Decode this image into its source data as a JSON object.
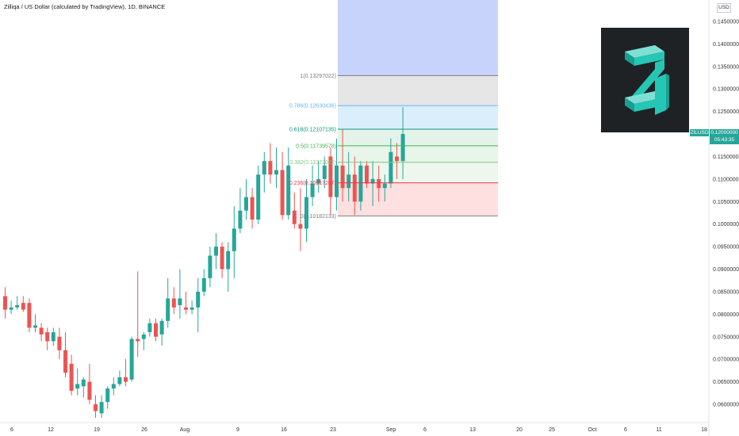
{
  "header": {
    "title": "Zilliqa / US Dollar (calculated by TradingView), 1D, BINANCE"
  },
  "currency_button": "USD",
  "last_price": {
    "symbol": "ZILUSD",
    "price": "0.12000000",
    "countdown": "05:43:35"
  },
  "logo": {
    "name": "zilliqa-logo",
    "colors": [
      "#26c6b5",
      "#1e2225"
    ]
  },
  "colors": {
    "up": "#26a69a",
    "down": "#ef5350",
    "fib_zone_blue": "#c7d3fb"
  },
  "chart_data": {
    "type": "candlestick",
    "y_ticks": [
      "0.14500000",
      "0.14000000",
      "0.13500000",
      "0.13000000",
      "0.12500000",
      "0.12000000",
      "0.11500000",
      "0.11000000",
      "0.10500000",
      "0.10000000",
      "0.09500000",
      "0.09000000",
      "0.08500000",
      "0.08000000",
      "0.07500000",
      "0.07000000",
      "0.06500000",
      "0.06000000"
    ],
    "x_ticks": [
      "6",
      "12",
      "19",
      "26",
      "Aug",
      "9",
      "16",
      "23",
      "Sep",
      "6",
      "13",
      "20",
      "25",
      "Oct",
      "6",
      "11",
      "18"
    ],
    "ylim": [
      0.0555,
      0.1475
    ],
    "candles": [
      {
        "o": 0.084,
        "h": 0.086,
        "l": 0.079,
        "c": 0.081
      },
      {
        "o": 0.081,
        "h": 0.083,
        "l": 0.08,
        "c": 0.0815
      },
      {
        "o": 0.0815,
        "h": 0.084,
        "l": 0.081,
        "c": 0.082
      },
      {
        "o": 0.0825,
        "h": 0.084,
        "l": 0.0805,
        "c": 0.081
      },
      {
        "o": 0.0825,
        "h": 0.0835,
        "l": 0.076,
        "c": 0.077
      },
      {
        "o": 0.077,
        "h": 0.08,
        "l": 0.076,
        "c": 0.0775
      },
      {
        "o": 0.077,
        "h": 0.078,
        "l": 0.074,
        "c": 0.0755
      },
      {
        "o": 0.076,
        "h": 0.077,
        "l": 0.072,
        "c": 0.074
      },
      {
        "o": 0.074,
        "h": 0.077,
        "l": 0.073,
        "c": 0.076
      },
      {
        "o": 0.075,
        "h": 0.077,
        "l": 0.07,
        "c": 0.072
      },
      {
        "o": 0.072,
        "h": 0.076,
        "l": 0.066,
        "c": 0.067
      },
      {
        "o": 0.069,
        "h": 0.071,
        "l": 0.062,
        "c": 0.063
      },
      {
        "o": 0.0635,
        "h": 0.068,
        "l": 0.062,
        "c": 0.0645
      },
      {
        "o": 0.064,
        "h": 0.066,
        "l": 0.0615,
        "c": 0.0655
      },
      {
        "o": 0.065,
        "h": 0.069,
        "l": 0.06,
        "c": 0.061
      },
      {
        "o": 0.06,
        "h": 0.062,
        "l": 0.057,
        "c": 0.0585
      },
      {
        "o": 0.058,
        "h": 0.062,
        "l": 0.057,
        "c": 0.0605
      },
      {
        "o": 0.0605,
        "h": 0.064,
        "l": 0.059,
        "c": 0.0635
      },
      {
        "o": 0.0635,
        "h": 0.066,
        "l": 0.062,
        "c": 0.0645
      },
      {
        "o": 0.0645,
        "h": 0.0675,
        "l": 0.064,
        "c": 0.066
      },
      {
        "o": 0.066,
        "h": 0.07,
        "l": 0.064,
        "c": 0.065
      },
      {
        "o": 0.0655,
        "h": 0.075,
        "l": 0.065,
        "c": 0.0745
      },
      {
        "o": 0.0745,
        "h": 0.0895,
        "l": 0.0705,
        "c": 0.074
      },
      {
        "o": 0.0745,
        "h": 0.076,
        "l": 0.072,
        "c": 0.0755
      },
      {
        "o": 0.076,
        "h": 0.079,
        "l": 0.075,
        "c": 0.078
      },
      {
        "o": 0.078,
        "h": 0.079,
        "l": 0.074,
        "c": 0.075
      },
      {
        "o": 0.0755,
        "h": 0.079,
        "l": 0.073,
        "c": 0.0785
      },
      {
        "o": 0.0785,
        "h": 0.088,
        "l": 0.077,
        "c": 0.0835
      },
      {
        "o": 0.0835,
        "h": 0.086,
        "l": 0.08,
        "c": 0.0815
      },
      {
        "o": 0.082,
        "h": 0.09,
        "l": 0.079,
        "c": 0.0835
      },
      {
        "o": 0.0815,
        "h": 0.085,
        "l": 0.08,
        "c": 0.081
      },
      {
        "o": 0.081,
        "h": 0.083,
        "l": 0.08,
        "c": 0.0815
      },
      {
        "o": 0.0815,
        "h": 0.088,
        "l": 0.076,
        "c": 0.085
      },
      {
        "o": 0.085,
        "h": 0.09,
        "l": 0.084,
        "c": 0.088
      },
      {
        "o": 0.088,
        "h": 0.095,
        "l": 0.086,
        "c": 0.093
      },
      {
        "o": 0.093,
        "h": 0.098,
        "l": 0.09,
        "c": 0.095
      },
      {
        "o": 0.095,
        "h": 0.096,
        "l": 0.088,
        "c": 0.09
      },
      {
        "o": 0.09,
        "h": 0.096,
        "l": 0.085,
        "c": 0.094
      },
      {
        "o": 0.094,
        "h": 0.104,
        "l": 0.088,
        "c": 0.099
      },
      {
        "o": 0.099,
        "h": 0.108,
        "l": 0.098,
        "c": 0.103
      },
      {
        "o": 0.103,
        "h": 0.11,
        "l": 0.101,
        "c": 0.106
      },
      {
        "o": 0.106,
        "h": 0.108,
        "l": 0.099,
        "c": 0.101
      },
      {
        "o": 0.101,
        "h": 0.113,
        "l": 0.1,
        "c": 0.111
      },
      {
        "o": 0.111,
        "h": 0.116,
        "l": 0.107,
        "c": 0.114
      },
      {
        "o": 0.114,
        "h": 0.118,
        "l": 0.109,
        "c": 0.111
      },
      {
        "o": 0.111,
        "h": 0.117,
        "l": 0.108,
        "c": 0.112
      },
      {
        "o": 0.112,
        "h": 0.116,
        "l": 0.101,
        "c": 0.102
      },
      {
        "o": 0.102,
        "h": 0.117,
        "l": 0.101,
        "c": 0.113
      },
      {
        "o": 0.103,
        "h": 0.107,
        "l": 0.099,
        "c": 0.1
      },
      {
        "o": 0.1,
        "h": 0.108,
        "l": 0.094,
        "c": 0.099
      },
      {
        "o": 0.099,
        "h": 0.11,
        "l": 0.096,
        "c": 0.106
      },
      {
        "o": 0.106,
        "h": 0.113,
        "l": 0.104,
        "c": 0.109
      },
      {
        "o": 0.109,
        "h": 0.114,
        "l": 0.107,
        "c": 0.11
      },
      {
        "o": 0.11,
        "h": 0.115,
        "l": 0.108,
        "c": 0.113
      },
      {
        "o": 0.115,
        "h": 0.117,
        "l": 0.102,
        "c": 0.106
      },
      {
        "o": 0.106,
        "h": 0.119,
        "l": 0.103,
        "c": 0.113
      },
      {
        "o": 0.113,
        "h": 0.121,
        "l": 0.105,
        "c": 0.108
      },
      {
        "o": 0.108,
        "h": 0.116,
        "l": 0.105,
        "c": 0.111
      },
      {
        "o": 0.111,
        "h": 0.115,
        "l": 0.102,
        "c": 0.105
      },
      {
        "o": 0.105,
        "h": 0.114,
        "l": 0.103,
        "c": 0.113
      },
      {
        "o": 0.113,
        "h": 0.114,
        "l": 0.108,
        "c": 0.109
      },
      {
        "o": 0.109,
        "h": 0.114,
        "l": 0.104,
        "c": 0.11
      },
      {
        "o": 0.11,
        "h": 0.113,
        "l": 0.105,
        "c": 0.108
      },
      {
        "o": 0.108,
        "h": 0.111,
        "l": 0.105,
        "c": 0.109
      },
      {
        "o": 0.109,
        "h": 0.119,
        "l": 0.108,
        "c": 0.116
      },
      {
        "o": 0.115,
        "h": 0.118,
        "l": 0.11,
        "c": 0.114
      },
      {
        "o": 0.114,
        "h": 0.126,
        "l": 0.11,
        "c": 0.12
      }
    ],
    "fib_levels": [
      {
        "label": "1(0.13297022)",
        "value": 0.13297022,
        "color": "#787b86"
      },
      {
        "label": "0.786(0.12630436)",
        "value": 0.12630436,
        "color": "#64b5f6"
      },
      {
        "label": "0.618(0.12107135)",
        "value": 0.12107135,
        "color": "#089981"
      },
      {
        "label": "0.5(0.11739578)",
        "value": 0.11739578,
        "color": "#4caf50"
      },
      {
        "label": "0.382(0.11372022)",
        "value": 0.11372022,
        "color": "#81c784"
      },
      {
        "label": "0.236(0.10917267)",
        "value": 0.10917267,
        "color": "#f23645"
      },
      {
        "label": "0(0.10182133)",
        "value": 0.10182133,
        "color": "#787b86"
      }
    ]
  }
}
